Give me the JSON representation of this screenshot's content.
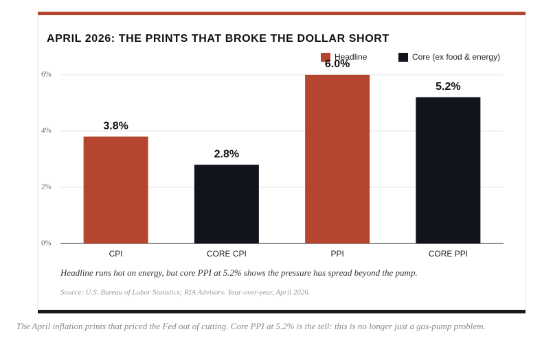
{
  "chart_data": {
    "type": "bar",
    "title": "APRIL 2026: THE PRINTS THAT BROKE THE DOLLAR SHORT",
    "categories": [
      "CPI",
      "CORE CPI",
      "PPI",
      "CORE PPI"
    ],
    "series": [
      {
        "name": "Headline",
        "color": "#b5452f",
        "values": [
          3.8,
          null,
          6.0,
          null
        ],
        "value_labels": [
          "3.8%",
          null,
          "6.0%",
          null
        ]
      },
      {
        "name": "Core (ex food & energy)",
        "color": "#12141c",
        "values": [
          null,
          2.8,
          null,
          5.2
        ],
        "value_labels": [
          null,
          "2.8%",
          null,
          "5.2%"
        ]
      }
    ],
    "ylim": [
      0,
      6
    ],
    "yticks": [
      {
        "value": 0,
        "label": "0%"
      },
      {
        "value": 2,
        "label": "2%"
      },
      {
        "value": 4,
        "label": "4%"
      },
      {
        "value": 6,
        "label": "6%"
      }
    ],
    "grid": true,
    "legend": "top-right",
    "caption": "Headline runs hot on energy, but core PPI at 5.2% shows the pressure has spread beyond the pump.",
    "source": "Source: U.S. Bureau of Labor Statistics; RIA Advisors. Year-over-year, April 2026."
  },
  "page_caption": "The April inflation prints that priced the Fed out of cutting. Core PPI at 5.2% is the tell: this is no longer just a gas-pump problem."
}
